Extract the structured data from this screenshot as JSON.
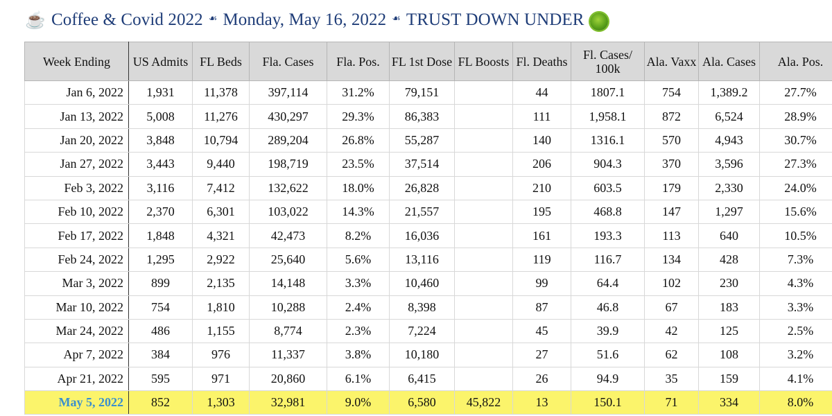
{
  "header": {
    "coffee_icon": "coffee-cup-icon",
    "title_part1": "Coffee & Covid 2022",
    "title_part2": "Monday, May 16, 2022",
    "title_part3": "TRUST DOWN UNDER",
    "separator_icon": "fleuron-icon",
    "virus_icon": "virus-icon"
  },
  "table": {
    "columns": [
      "Week Ending",
      "US Admits",
      "FL Beds",
      "Fla. Cases",
      "Fla. Pos.",
      "FL 1st Dose",
      "FL Boosts",
      "Fl. Deaths",
      "Fl. Cases/ 100k",
      "Ala. Vaxx",
      "Ala. Cases",
      "Ala. Pos."
    ],
    "rows": [
      [
        "Jan 6, 2022",
        "1,931",
        "11,378",
        "397,114",
        "31.2%",
        "79,151",
        "",
        "44",
        "1807.1",
        "754",
        "1,389.2",
        "27.7%"
      ],
      [
        "Jan 13, 2022",
        "5,008",
        "11,276",
        "430,297",
        "29.3%",
        "86,383",
        "",
        "111",
        "1,958.1",
        "872",
        "6,524",
        "28.9%"
      ],
      [
        "Jan 20, 2022",
        "3,848",
        "10,794",
        "289,204",
        "26.8%",
        "55,287",
        "",
        "140",
        "1316.1",
        "570",
        "4,943",
        "30.7%"
      ],
      [
        "Jan 27, 2022",
        "3,443",
        "9,440",
        "198,719",
        "23.5%",
        "37,514",
        "",
        "206",
        "904.3",
        "370",
        "3,596",
        "27.3%"
      ],
      [
        "Feb 3, 2022",
        "3,116",
        "7,412",
        "132,622",
        "18.0%",
        "26,828",
        "",
        "210",
        "603.5",
        "179",
        "2,330",
        "24.0%"
      ],
      [
        "Feb 10, 2022",
        "2,370",
        "6,301",
        "103,022",
        "14.3%",
        "21,557",
        "",
        "195",
        "468.8",
        "147",
        "1,297",
        "15.6%"
      ],
      [
        "Feb 17, 2022",
        "1,848",
        "4,321",
        "42,473",
        "8.2%",
        "16,036",
        "",
        "161",
        "193.3",
        "113",
        "640",
        "10.5%"
      ],
      [
        "Feb 24, 2022",
        "1,295",
        "2,922",
        "25,640",
        "5.6%",
        "13,116",
        "",
        "119",
        "116.7",
        "134",
        "428",
        "7.3%"
      ],
      [
        "Mar 3, 2022",
        "899",
        "2,135",
        "14,148",
        "3.3%",
        "10,460",
        "",
        "99",
        "64.4",
        "102",
        "230",
        "4.3%"
      ],
      [
        "Mar 10, 2022",
        "754",
        "1,810",
        "10,288",
        "2.4%",
        "8,398",
        "",
        "87",
        "46.8",
        "67",
        "183",
        "3.3%"
      ],
      [
        "Mar 24, 2022",
        "486",
        "1,155",
        "8,774",
        "2.3%",
        "7,224",
        "",
        "45",
        "39.9",
        "42",
        "125",
        "2.5%"
      ],
      [
        "Apr 7, 2022",
        "384",
        "976",
        "11,337",
        "3.8%",
        "10,180",
        "",
        "27",
        "51.6",
        "62",
        "108",
        "3.2%"
      ],
      [
        "Apr 21, 2022",
        "595",
        "971",
        "20,860",
        "6.1%",
        "6,415",
        "",
        "26",
        "94.9",
        "35",
        "159",
        "4.1%"
      ],
      [
        "May 5, 2022",
        "852",
        "1,303",
        "32,981",
        "9.0%",
        "6,580",
        "45,822",
        "13",
        "150.1",
        "71",
        "334",
        "8.0%"
      ]
    ],
    "highlight_color": "#fbf46b",
    "highlight_text_color": "#3a8fce",
    "title_color": "#1f3d78"
  }
}
